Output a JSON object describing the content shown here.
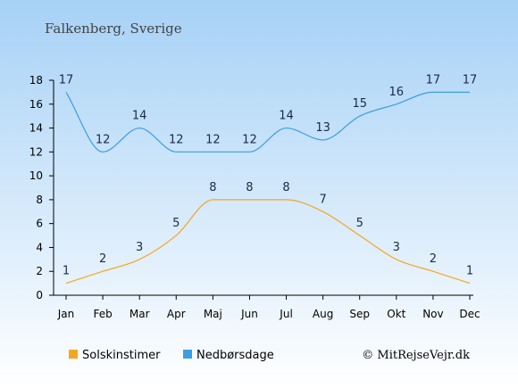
{
  "header": {
    "subtitle": "Falkenberg, Sverige"
  },
  "footer": {
    "credit": "© MitRejseVejr.dk"
  },
  "colors": {
    "background_top": "#a6d1f6",
    "background_bottom": "#ffffff",
    "sunshine": "#f5a623",
    "rain_days": "#3a9ee4",
    "axis": "#000000",
    "data_label": "#1a2a4a"
  },
  "chart_data": {
    "type": "line",
    "categories": [
      "Jan",
      "Feb",
      "Mar",
      "Apr",
      "Maj",
      "Jun",
      "Jul",
      "Aug",
      "Sep",
      "Okt",
      "Nov",
      "Dec"
    ],
    "ylim": [
      0,
      18
    ],
    "yticks": [
      "0",
      "2",
      "4",
      "6",
      "8",
      "10",
      "12",
      "14",
      "16",
      "18"
    ],
    "grid": false,
    "legend_position": "bottom",
    "series": [
      {
        "name": "Solskinstimer",
        "color": "#f5a623",
        "values": [
          1,
          2,
          3,
          5,
          8,
          8,
          8,
          7,
          5,
          3,
          2,
          1
        ]
      },
      {
        "name": "Nedbørsdage",
        "color": "#3a9ee4",
        "values": [
          17,
          12,
          14,
          12,
          12,
          12,
          14,
          13,
          15,
          16,
          17,
          17
        ]
      }
    ]
  }
}
